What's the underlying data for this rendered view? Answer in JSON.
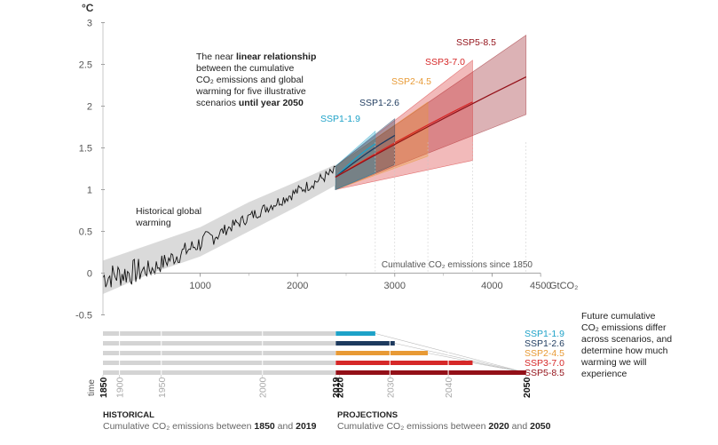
{
  "colors": {
    "SSP1-1.9": "#1ea2c8",
    "SSP1-2.6": "#1d3a5e",
    "SSP2-4.5": "#e89a35",
    "SSP3-7.0": "#d62828",
    "SSP5-8.5": "#931018",
    "historical": "#111111",
    "range": "#d3d3d3"
  },
  "chart_data": {
    "type": "line",
    "y_unit": "°C",
    "y_ticks": [
      "3",
      "2.5",
      "2",
      "1.5",
      "1",
      "0.5",
      "0",
      "-0.5"
    ],
    "ylim": [
      -0.5,
      3
    ],
    "x_ticks": [
      "1000",
      "2000",
      "3000",
      "4000",
      "4500"
    ],
    "x_unit": "GtCO₂",
    "xlim": [
      0,
      4500
    ],
    "x_caption": "Cumulative CO₂ emissions since 1850",
    "annotations": {
      "main_parts": [
        "The near ",
        "linear relationship",
        "between the cumulative",
        "CO₂ emissions and global",
        "warming for five illustrative",
        "scenarios ",
        "until year 2050"
      ],
      "historical_lines": [
        "Historical global",
        "warming"
      ],
      "future_lines": [
        "Future cumulative",
        "CO₂ emissions differ",
        "across scenarios, and",
        "determine how much",
        "warming we will",
        "experience"
      ]
    },
    "historical_band": [
      [
        0,
        -0.25,
        0.15
      ],
      [
        500,
        0.0,
        0.35
      ],
      [
        1000,
        0.2,
        0.55
      ],
      [
        1500,
        0.5,
        0.85
      ],
      [
        2000,
        0.8,
        1.1
      ],
      [
        2390,
        1.05,
        1.3
      ]
    ],
    "series": [
      {
        "name": "SSP1-1.9",
        "end_x": 2800,
        "end_y": 1.55,
        "band_high": 1.7,
        "band_low": 1.2
      },
      {
        "name": "SSP1-2.6",
        "end_x": 3000,
        "end_y": 1.65,
        "band_high": 1.85,
        "band_low": 1.3
      },
      {
        "name": "SSP2-4.5",
        "end_x": 3340,
        "end_y": 1.75,
        "band_high": 2.05,
        "band_low": 1.4
      },
      {
        "name": "SSP3-7.0",
        "end_x": 3800,
        "end_y": 2.05,
        "band_high": 2.55,
        "band_low": 1.35
      },
      {
        "name": "SSP5-8.5",
        "end_x": 4350,
        "end_y": 2.35,
        "band_high": 2.85,
        "band_low": 1.9
      }
    ],
    "timeline": {
      "label": "time",
      "years": [
        {
          "label": "1850",
          "x": 0,
          "bold": true
        },
        {
          "label": "1900",
          "x": 170,
          "bold": false
        },
        {
          "label": "1950",
          "x": 600,
          "bold": false
        },
        {
          "label": "2000",
          "x": 1640,
          "bold": false
        },
        {
          "label": "2019",
          "x": 2390,
          "bold": true
        },
        {
          "label": "2020",
          "x": 2430,
          "bold": true
        },
        {
          "label": "2030",
          "x": 2950,
          "bold": false
        },
        {
          "label": "2040",
          "x": 3550,
          "bold": false
        },
        {
          "label": "2050",
          "x": 4350,
          "bold": true
        }
      ],
      "historical_end": 2390,
      "bar_labels": [
        "SSP1-1.9",
        "SSP1-2.6",
        "SSP2-4.5",
        "SSP3-7.0",
        "SSP5-8.5"
      ]
    },
    "footer": {
      "hist_title": "HISTORICAL",
      "hist_parts": [
        "Cumulative CO₂ emissions between ",
        "1850",
        " and ",
        "2019"
      ],
      "proj_title": "PROJECTIONS",
      "proj_parts": [
        "Cumulative CO₂ emissions between ",
        "2020",
        " and ",
        "2050"
      ]
    }
  }
}
